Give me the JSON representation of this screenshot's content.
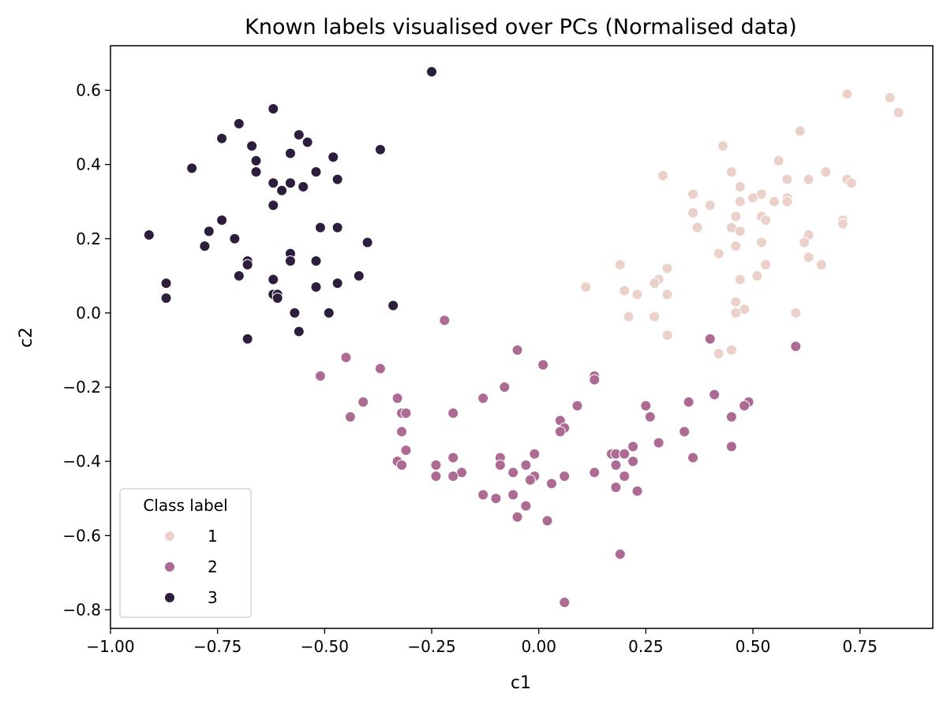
{
  "chart_data": {
    "type": "scatter",
    "title": "Known labels visualised over PCs (Normalised data)",
    "xlabel": "c1",
    "ylabel": "c2",
    "xlim": [
      -1.0,
      0.92
    ],
    "ylim": [
      -0.85,
      0.72
    ],
    "xticks": [
      -1.0,
      -0.75,
      -0.5,
      -0.25,
      0.0,
      0.25,
      0.5,
      0.75
    ],
    "xtick_labels": [
      "−1.00",
      "−0.75",
      "−0.50",
      "−0.25",
      "0.00",
      "0.25",
      "0.50",
      "0.75"
    ],
    "yticks": [
      -0.8,
      -0.6,
      -0.4,
      -0.2,
      0.0,
      0.2,
      0.4,
      0.6
    ],
    "ytick_labels": [
      "−0.8",
      "−0.6",
      "−0.4",
      "−0.2",
      "0.0",
      "0.2",
      "0.4",
      "0.6"
    ],
    "grid": false,
    "legend": {
      "title": "Class label",
      "position": "lower-left",
      "entries": [
        "1",
        "2",
        "3"
      ]
    },
    "series": [
      {
        "name": "1",
        "color": "#ebd1c9",
        "points": [
          [
            0.72,
            0.59
          ],
          [
            0.82,
            0.58
          ],
          [
            0.84,
            0.54
          ],
          [
            0.61,
            0.49
          ],
          [
            0.43,
            0.45
          ],
          [
            0.56,
            0.41
          ],
          [
            0.45,
            0.38
          ],
          [
            0.67,
            0.38
          ],
          [
            0.29,
            0.37
          ],
          [
            0.58,
            0.36
          ],
          [
            0.63,
            0.36
          ],
          [
            0.72,
            0.36
          ],
          [
            0.73,
            0.35
          ],
          [
            0.47,
            0.34
          ],
          [
            0.36,
            0.32
          ],
          [
            0.52,
            0.32
          ],
          [
            0.5,
            0.31
          ],
          [
            0.58,
            0.31
          ],
          [
            0.47,
            0.3
          ],
          [
            0.55,
            0.3
          ],
          [
            0.58,
            0.3
          ],
          [
            0.4,
            0.29
          ],
          [
            0.36,
            0.27
          ],
          [
            0.46,
            0.26
          ],
          [
            0.52,
            0.26
          ],
          [
            0.53,
            0.25
          ],
          [
            0.71,
            0.25
          ],
          [
            0.45,
            0.23
          ],
          [
            0.71,
            0.24
          ],
          [
            0.37,
            0.23
          ],
          [
            0.47,
            0.22
          ],
          [
            0.63,
            0.21
          ],
          [
            0.62,
            0.19
          ],
          [
            0.52,
            0.19
          ],
          [
            0.46,
            0.18
          ],
          [
            0.42,
            0.16
          ],
          [
            0.63,
            0.15
          ],
          [
            0.53,
            0.13
          ],
          [
            0.66,
            0.13
          ],
          [
            0.19,
            0.13
          ],
          [
            0.3,
            0.12
          ],
          [
            0.51,
            0.1
          ],
          [
            0.28,
            0.09
          ],
          [
            0.47,
            0.09
          ],
          [
            0.27,
            0.08
          ],
          [
            0.11,
            0.07
          ],
          [
            0.2,
            0.06
          ],
          [
            0.23,
            0.05
          ],
          [
            0.3,
            0.05
          ],
          [
            0.46,
            0.03
          ],
          [
            0.48,
            0.01
          ],
          [
            0.46,
            0.0
          ],
          [
            0.6,
            0.0
          ],
          [
            0.21,
            -0.01
          ],
          [
            0.27,
            -0.01
          ],
          [
            0.3,
            -0.06
          ],
          [
            0.45,
            -0.1
          ],
          [
            0.42,
            -0.11
          ]
        ]
      },
      {
        "name": "2",
        "color": "#ad6a92",
        "points": [
          [
            -0.22,
            -0.02
          ],
          [
            0.6,
            -0.09
          ],
          [
            0.4,
            -0.07
          ],
          [
            -0.05,
            -0.1
          ],
          [
            -0.45,
            -0.12
          ],
          [
            0.01,
            -0.14
          ],
          [
            -0.37,
            -0.15
          ],
          [
            -0.51,
            -0.17
          ],
          [
            0.13,
            -0.17
          ],
          [
            0.13,
            -0.18
          ],
          [
            -0.08,
            -0.2
          ],
          [
            0.41,
            -0.22
          ],
          [
            -0.33,
            -0.23
          ],
          [
            -0.13,
            -0.23
          ],
          [
            -0.41,
            -0.24
          ],
          [
            0.49,
            -0.24
          ],
          [
            0.48,
            -0.25
          ],
          [
            0.35,
            -0.24
          ],
          [
            0.25,
            -0.25
          ],
          [
            0.09,
            -0.25
          ],
          [
            -0.32,
            -0.27
          ],
          [
            -0.31,
            -0.27
          ],
          [
            -0.2,
            -0.27
          ],
          [
            0.45,
            -0.28
          ],
          [
            -0.44,
            -0.28
          ],
          [
            0.26,
            -0.28
          ],
          [
            0.05,
            -0.29
          ],
          [
            0.06,
            -0.31
          ],
          [
            0.05,
            -0.32
          ],
          [
            0.34,
            -0.32
          ],
          [
            -0.32,
            -0.32
          ],
          [
            0.28,
            -0.35
          ],
          [
            0.22,
            -0.36
          ],
          [
            0.45,
            -0.36
          ],
          [
            -0.31,
            -0.37
          ],
          [
            0.17,
            -0.38
          ],
          [
            0.18,
            -0.38
          ],
          [
            0.2,
            -0.38
          ],
          [
            -0.01,
            -0.38
          ],
          [
            0.36,
            -0.39
          ],
          [
            -0.09,
            -0.39
          ],
          [
            -0.2,
            -0.39
          ],
          [
            -0.33,
            -0.4
          ],
          [
            -0.32,
            -0.41
          ],
          [
            0.22,
            -0.4
          ],
          [
            -0.09,
            -0.41
          ],
          [
            -0.03,
            -0.41
          ],
          [
            -0.24,
            -0.41
          ],
          [
            0.18,
            -0.41
          ],
          [
            -0.06,
            -0.43
          ],
          [
            -0.18,
            -0.43
          ],
          [
            -0.24,
            -0.44
          ],
          [
            0.13,
            -0.43
          ],
          [
            -0.2,
            -0.44
          ],
          [
            -0.01,
            -0.44
          ],
          [
            0.06,
            -0.44
          ],
          [
            0.2,
            -0.44
          ],
          [
            -0.02,
            -0.45
          ],
          [
            0.03,
            -0.46
          ],
          [
            0.18,
            -0.47
          ],
          [
            0.23,
            -0.48
          ],
          [
            -0.13,
            -0.49
          ],
          [
            -0.06,
            -0.49
          ],
          [
            -0.1,
            -0.5
          ],
          [
            -0.03,
            -0.52
          ],
          [
            -0.05,
            -0.55
          ],
          [
            0.02,
            -0.56
          ],
          [
            0.19,
            -0.65
          ],
          [
            0.06,
            -0.78
          ]
        ]
      },
      {
        "name": "3",
        "color": "#2d1e3e",
        "points": [
          [
            -0.25,
            0.65
          ],
          [
            -0.62,
            0.55
          ],
          [
            -0.7,
            0.51
          ],
          [
            -0.56,
            0.48
          ],
          [
            -0.74,
            0.47
          ],
          [
            -0.54,
            0.46
          ],
          [
            -0.67,
            0.45
          ],
          [
            -0.37,
            0.44
          ],
          [
            -0.58,
            0.43
          ],
          [
            -0.48,
            0.42
          ],
          [
            -0.66,
            0.41
          ],
          [
            -0.81,
            0.39
          ],
          [
            -0.52,
            0.38
          ],
          [
            -0.66,
            0.38
          ],
          [
            -0.47,
            0.36
          ],
          [
            -0.62,
            0.35
          ],
          [
            -0.58,
            0.35
          ],
          [
            -0.55,
            0.34
          ],
          [
            -0.6,
            0.33
          ],
          [
            -0.62,
            0.29
          ],
          [
            -0.74,
            0.25
          ],
          [
            -0.51,
            0.23
          ],
          [
            -0.47,
            0.23
          ],
          [
            -0.77,
            0.22
          ],
          [
            -0.91,
            0.21
          ],
          [
            -0.71,
            0.2
          ],
          [
            -0.4,
            0.19
          ],
          [
            -0.78,
            0.18
          ],
          [
            -0.58,
            0.16
          ],
          [
            -0.68,
            0.14
          ],
          [
            -0.58,
            0.14
          ],
          [
            -0.52,
            0.14
          ],
          [
            -0.68,
            0.13
          ],
          [
            -0.7,
            0.1
          ],
          [
            -0.42,
            0.1
          ],
          [
            -0.62,
            0.09
          ],
          [
            -0.87,
            0.08
          ],
          [
            -0.47,
            0.08
          ],
          [
            -0.52,
            0.07
          ],
          [
            -0.62,
            0.05
          ],
          [
            -0.61,
            0.05
          ],
          [
            -0.61,
            0.04
          ],
          [
            -0.87,
            0.04
          ],
          [
            -0.34,
            0.02
          ],
          [
            -0.57,
            0.0
          ],
          [
            -0.49,
            0.0
          ],
          [
            -0.56,
            -0.05
          ],
          [
            -0.68,
            -0.07
          ]
        ]
      }
    ]
  }
}
